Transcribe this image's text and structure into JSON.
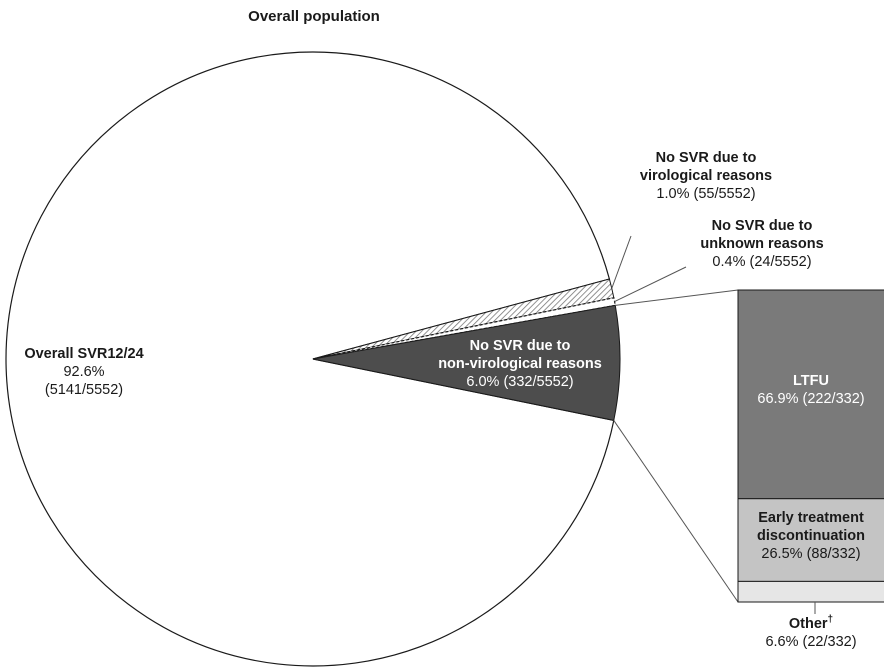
{
  "chart_data": {
    "type": "pie",
    "title": "Overall population",
    "pie": {
      "slices": [
        {
          "label": "Overall SVR12/24",
          "percent_label": "92.6%",
          "count_label": "(5141/5552)",
          "value": 92.6,
          "fill": "#ffffff",
          "pattern": "none"
        },
        {
          "label": "No SVR due to virological reasons",
          "label_line1": "No SVR due to",
          "label_line2": "virological reasons",
          "value_label": "1.0% (55/5552)",
          "value": 1.0,
          "fill": "#ffffff",
          "pattern": "diagonal-hatch"
        },
        {
          "label": "No SVR due to unknown reasons",
          "label_line1": "No SVR due to",
          "label_line2": "unknown reasons",
          "value_label": "0.4% (24/5552)",
          "value": 0.4,
          "fill": "#ffffff",
          "pattern": "dashed"
        },
        {
          "label": "No SVR due to non-virological reasons",
          "label_line1": "No SVR due to",
          "label_line2": "non-virological reasons",
          "value_label": "6.0% (332/5552)",
          "value": 6.0,
          "fill": "#4d4d4d",
          "pattern": "none"
        }
      ]
    },
    "breakdown": {
      "of_slice": "No SVR due to non-virological reasons",
      "segments": [
        {
          "label": "LTFU",
          "value_label": "66.9% (222/332)",
          "value": 66.9,
          "fill": "#7a7a7a"
        },
        {
          "label": "Early treatment discontinuation",
          "label_line1": "Early treatment",
          "label_line2": "discontinuation",
          "value_label": "26.5% (88/332)",
          "value": 26.5,
          "fill": "#c4c4c4"
        },
        {
          "label": "Other†",
          "label_text": "Other",
          "label_sup": "†",
          "value_label": "6.6% (22/332)",
          "value": 6.6,
          "fill": "#e6e6e6"
        }
      ]
    },
    "colors": {
      "edge": "#1a1a1a",
      "leader": "#555555",
      "text": "#1a1a1a"
    }
  }
}
